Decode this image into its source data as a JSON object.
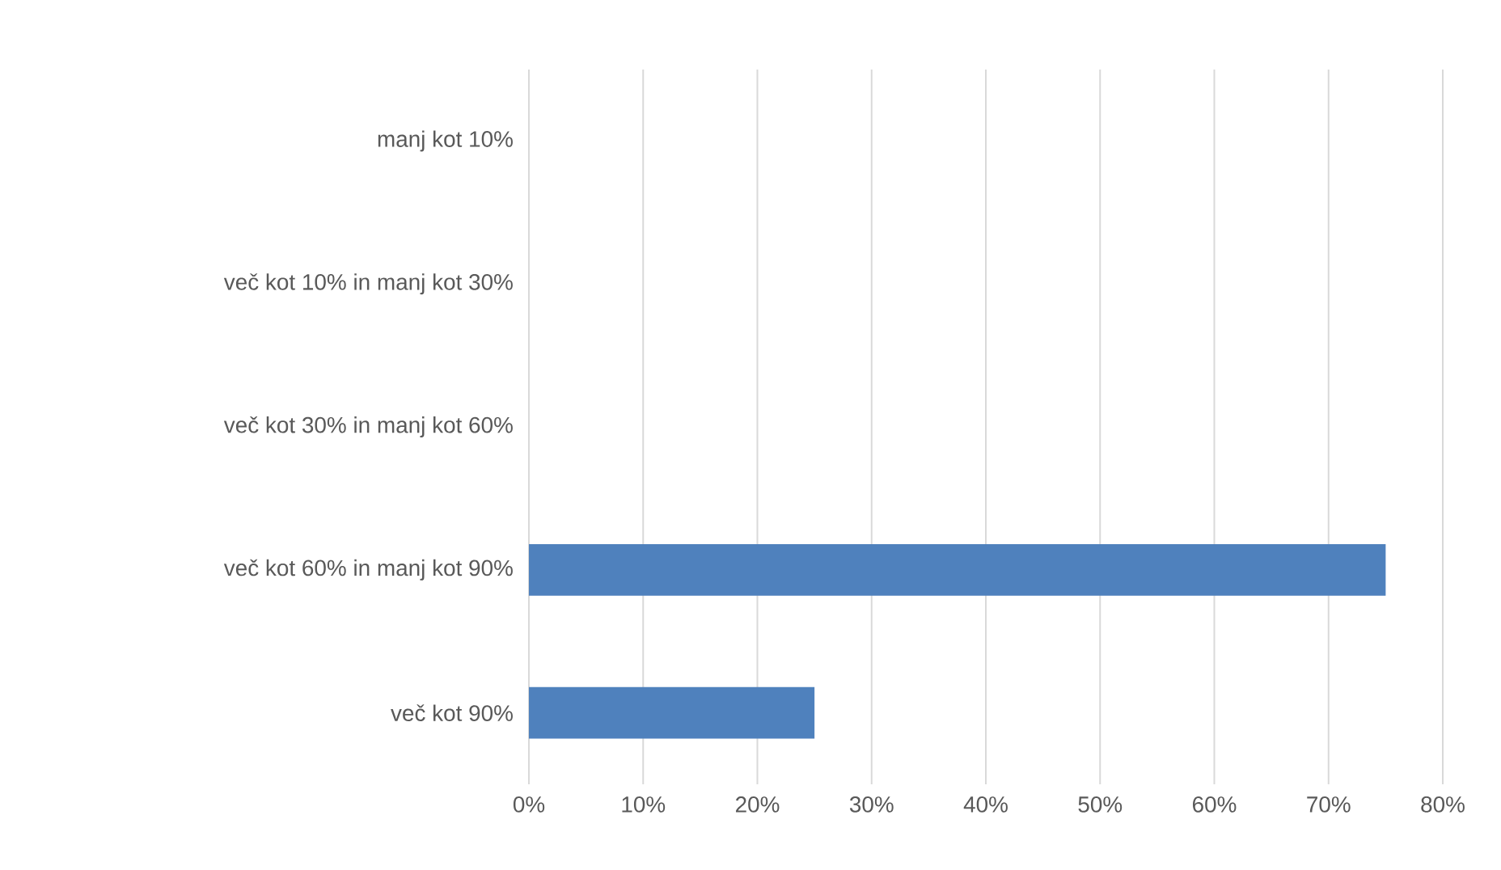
{
  "chart_data": {
    "type": "bar",
    "orientation": "horizontal",
    "categories": [
      "manj kot 10%",
      "več kot 10% in manj kot 30%",
      "več kot 30% in manj kot 60%",
      "več kot 60% in manj kot 90%",
      "več kot 90%"
    ],
    "values": [
      0,
      0,
      0,
      75,
      25
    ],
    "color": "#4f81bd",
    "xlim": [
      0,
      80
    ],
    "xticks": [
      {
        "value": 0,
        "label": "0%"
      },
      {
        "value": 10,
        "label": "10%"
      },
      {
        "value": 20,
        "label": "20%"
      },
      {
        "value": 30,
        "label": "30%"
      },
      {
        "value": 40,
        "label": "40%"
      },
      {
        "value": 50,
        "label": "50%"
      },
      {
        "value": 60,
        "label": "60%"
      },
      {
        "value": 70,
        "label": "70%"
      },
      {
        "value": 80,
        "label": "80%"
      }
    ],
    "grid": "x"
  }
}
